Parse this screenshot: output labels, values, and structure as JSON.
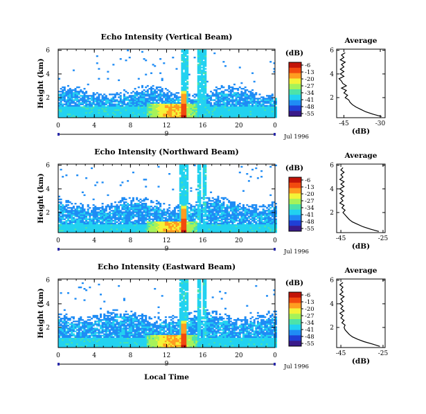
{
  "figure": {
    "xlabel": "Local Time",
    "date_label": "Jul 1996",
    "day_label": "9",
    "colorbar_unit": "(dB)",
    "colorbar_ticks": [
      "-6",
      "-13",
      "-20",
      "-27",
      "-34",
      "-41",
      "-48",
      "-55"
    ],
    "colormap": [
      "#3a1a8a",
      "#1f3fd6",
      "#1f8cf5",
      "#22d2f0",
      "#4de3a8",
      "#a6f25a",
      "#f3f338",
      "#ff9d20",
      "#f24a0f",
      "#c21408"
    ],
    "profile_title": "Average",
    "profile_xlabel": "(dB)",
    "ylabel": "Height (km)"
  },
  "chart_data": [
    {
      "type": "heatmap",
      "title": "Echo Intensity (Vertical Beam)",
      "xlabel": "",
      "ylabel": "Height (km)",
      "x_ticks": [
        "0",
        "4",
        "8",
        "12",
        "16",
        "20",
        "0"
      ],
      "y_ticks": [
        "2",
        "4",
        "6"
      ],
      "x_range": [
        0,
        24
      ],
      "y_range": [
        0.3,
        6.1
      ],
      "color_range_db": [
        -55,
        -6
      ],
      "features": {
        "base_layer_top_km": 1.2,
        "layer_top_km": 2.1,
        "max_echo_time_h": 13.8,
        "plume_times_h": [
          13.7,
          14.1,
          15.6,
          16.0
        ],
        "plume_top_km": 6.0
      },
      "profile": {
        "title": "Average",
        "xlabel": "(dB)",
        "x_ticks": [
          "-45",
          "-30"
        ],
        "y_ticks": [
          "2",
          "4",
          "6"
        ],
        "xlim": [
          -48,
          -28
        ],
        "ylim": [
          0.3,
          6.1
        ],
        "height_km": [
          0.4,
          0.6,
          0.8,
          1.0,
          1.2,
          1.4,
          1.6,
          1.8,
          2.0,
          2.2,
          2.4,
          2.6,
          2.8,
          3.0,
          3.2,
          3.4,
          3.6,
          3.8,
          4.0,
          4.2,
          4.4,
          4.6,
          4.8,
          5.0,
          5.2,
          5.4,
          5.6,
          5.8
        ],
        "db": [
          -29.5,
          -33,
          -36,
          -38,
          -40,
          -41.5,
          -42.5,
          -43,
          -44.5,
          -43.5,
          -45,
          -44,
          -46,
          -44,
          -45.5,
          -46,
          -47,
          -45,
          -46.5,
          -45,
          -46.5,
          -45,
          -46,
          -44.5,
          -46.5,
          -45,
          -46,
          -44.5
        ]
      }
    },
    {
      "type": "heatmap",
      "title": "Echo Intensity (Northward Beam)",
      "xlabel": "",
      "ylabel": "Height (km)",
      "x_ticks": [
        "0",
        "4",
        "8",
        "12",
        "16",
        "20",
        "0"
      ],
      "y_ticks": [
        "2",
        "4",
        "6"
      ],
      "x_range": [
        0,
        24
      ],
      "y_range": [
        0.3,
        6.1
      ],
      "color_range_db": [
        -55,
        -6
      ],
      "features": {
        "base_layer_top_km": 1.0,
        "layer_top_km": 2.4,
        "max_echo_time_h": 13.8,
        "plume_times_h": [
          13.6,
          14.1,
          15.5,
          16.1
        ],
        "plume_top_km": 6.0
      },
      "profile": {
        "title": "Average",
        "xlabel": "(dB)",
        "x_ticks": [
          "-45",
          "-25"
        ],
        "y_ticks": [
          "2",
          "4",
          "6"
        ],
        "xlim": [
          -47,
          -24
        ],
        "ylim": [
          0.3,
          6.1
        ],
        "height_km": [
          0.4,
          0.6,
          0.8,
          1.0,
          1.2,
          1.4,
          1.6,
          1.8,
          2.0,
          2.2,
          2.4,
          2.6,
          2.8,
          3.0,
          3.2,
          3.4,
          3.6,
          3.8,
          4.0,
          4.2,
          4.4,
          4.6,
          4.8,
          5.0,
          5.2,
          5.4,
          5.6,
          5.8
        ],
        "db": [
          -27,
          -31,
          -34.5,
          -37,
          -39.5,
          -41,
          -42,
          -43,
          -44,
          -43,
          -44.5,
          -43.5,
          -45.5,
          -44,
          -45,
          -43.5,
          -45.5,
          -44,
          -45.5,
          -43.5,
          -45,
          -43.5,
          -45.5,
          -44,
          -45,
          -43.5,
          -45,
          -44
        ]
      }
    },
    {
      "type": "heatmap",
      "title": "Echo Intensity (Eastward Beam)",
      "xlabel": "Local Time",
      "ylabel": "Height (km)",
      "x_ticks": [
        "0",
        "4",
        "8",
        "12",
        "16",
        "20",
        "0"
      ],
      "y_ticks": [
        "2",
        "4",
        "6"
      ],
      "x_range": [
        0,
        24
      ],
      "y_range": [
        0.3,
        6.1
      ],
      "color_range_db": [
        -55,
        -6
      ],
      "features": {
        "base_layer_top_km": 1.1,
        "layer_top_km": 2.6,
        "max_echo_time_h": 13.8,
        "plume_times_h": [
          13.6,
          14.1,
          15.5,
          16.1
        ],
        "plume_top_km": 6.0
      },
      "profile": {
        "title": "Average",
        "xlabel": "(dB)",
        "x_ticks": [
          "-45",
          "-25"
        ],
        "y_ticks": [
          "2",
          "4",
          "6"
        ],
        "xlim": [
          -47,
          -24
        ],
        "ylim": [
          0.3,
          6.1
        ],
        "height_km": [
          0.4,
          0.6,
          0.8,
          1.0,
          1.2,
          1.4,
          1.6,
          1.8,
          2.0,
          2.2,
          2.4,
          2.6,
          2.8,
          3.0,
          3.2,
          3.4,
          3.6,
          3.8,
          4.0,
          4.2,
          4.4,
          4.6,
          4.8,
          5.0,
          5.2,
          5.4,
          5.6,
          5.8
        ],
        "db": [
          -26.5,
          -30,
          -34,
          -37,
          -39.5,
          -41,
          -42,
          -43,
          -43.5,
          -43,
          -44.5,
          -43.5,
          -45,
          -44,
          -45.5,
          -43.5,
          -45,
          -44,
          -45.5,
          -44,
          -45,
          -43.5,
          -45.5,
          -44,
          -45,
          -44,
          -45.5,
          -44
        ]
      }
    }
  ]
}
